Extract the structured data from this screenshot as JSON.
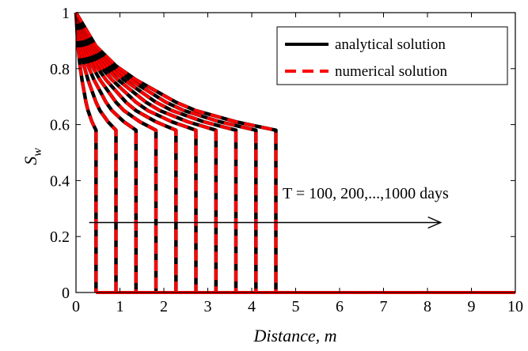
{
  "chart_data": {
    "type": "line",
    "title": "",
    "xlabel": "Distance, m",
    "ylabel_main": "S",
    "ylabel_sub": "w",
    "xlim": [
      0,
      10
    ],
    "ylim": [
      0,
      1
    ],
    "xticks": [
      "0",
      "1",
      "2",
      "3",
      "4",
      "5",
      "6",
      "7",
      "8",
      "9",
      "10"
    ],
    "yticks": [
      "0",
      "0.2",
      "0.4",
      "0.6",
      "0.8",
      "1"
    ],
    "grid": false,
    "legend": {
      "placement": "top-right",
      "entries": [
        {
          "label": "analytical solution",
          "color": "#000000",
          "style": "solid"
        },
        {
          "label": "numerical solution",
          "color": "#ff0000",
          "style": "dashed"
        }
      ]
    },
    "annotation": {
      "text": "T = 100, 200,...,1000 days",
      "arrow_from": [
        0.3,
        0.25
      ],
      "arrow_to": [
        8.3,
        0.25
      ]
    },
    "front_saturation": 0.58,
    "series": [
      {
        "T_days": 100,
        "front_x": 0.455,
        "points": [
          [
            0,
            1
          ],
          [
            0.0455,
            0.88
          ],
          [
            0.091,
            0.81
          ],
          [
            0.1365,
            0.76
          ],
          [
            0.182,
            0.72
          ],
          [
            0.2275,
            0.68
          ],
          [
            0.273,
            0.65
          ],
          [
            0.3185,
            0.63
          ],
          [
            0.364,
            0.61
          ],
          [
            0.4095,
            0.595
          ],
          [
            0.455,
            0.58
          ]
        ]
      },
      {
        "T_days": 200,
        "front_x": 0.91,
        "points": [
          [
            0,
            1
          ],
          [
            0.091,
            0.88
          ],
          [
            0.182,
            0.81
          ],
          [
            0.273,
            0.76
          ],
          [
            0.364,
            0.72
          ],
          [
            0.455,
            0.68
          ],
          [
            0.546,
            0.65
          ],
          [
            0.637,
            0.63
          ],
          [
            0.728,
            0.61
          ],
          [
            0.819,
            0.595
          ],
          [
            0.91,
            0.58
          ]
        ]
      },
      {
        "T_days": 300,
        "front_x": 1.365,
        "points": [
          [
            0,
            1
          ],
          [
            0.1365,
            0.88
          ],
          [
            0.273,
            0.81
          ],
          [
            0.4095,
            0.76
          ],
          [
            0.546,
            0.72
          ],
          [
            0.6825,
            0.68
          ],
          [
            0.819,
            0.65
          ],
          [
            0.9555,
            0.63
          ],
          [
            1.092,
            0.61
          ],
          [
            1.2285,
            0.595
          ],
          [
            1.365,
            0.58
          ]
        ]
      },
      {
        "T_days": 400,
        "front_x": 1.82,
        "points": [
          [
            0,
            1
          ],
          [
            0.182,
            0.88
          ],
          [
            0.364,
            0.81
          ],
          [
            0.546,
            0.76
          ],
          [
            0.728,
            0.72
          ],
          [
            0.91,
            0.68
          ],
          [
            1.092,
            0.65
          ],
          [
            1.274,
            0.63
          ],
          [
            1.456,
            0.61
          ],
          [
            1.638,
            0.595
          ],
          [
            1.82,
            0.58
          ]
        ]
      },
      {
        "T_days": 500,
        "front_x": 2.275,
        "points": [
          [
            0,
            1
          ],
          [
            0.2275,
            0.88
          ],
          [
            0.455,
            0.81
          ],
          [
            0.6825,
            0.76
          ],
          [
            0.91,
            0.72
          ],
          [
            1.1375,
            0.68
          ],
          [
            1.365,
            0.65
          ],
          [
            1.5925,
            0.63
          ],
          [
            1.82,
            0.61
          ],
          [
            2.0475,
            0.595
          ],
          [
            2.275,
            0.58
          ]
        ]
      },
      {
        "T_days": 600,
        "front_x": 2.73,
        "points": [
          [
            0,
            1
          ],
          [
            0.273,
            0.88
          ],
          [
            0.546,
            0.81
          ],
          [
            0.819,
            0.76
          ],
          [
            1.092,
            0.72
          ],
          [
            1.365,
            0.68
          ],
          [
            1.638,
            0.65
          ],
          [
            1.911,
            0.63
          ],
          [
            2.184,
            0.61
          ],
          [
            2.457,
            0.595
          ],
          [
            2.73,
            0.58
          ]
        ]
      },
      {
        "T_days": 700,
        "front_x": 3.185,
        "points": [
          [
            0,
            1
          ],
          [
            0.3185,
            0.88
          ],
          [
            0.637,
            0.81
          ],
          [
            0.9555,
            0.76
          ],
          [
            1.274,
            0.72
          ],
          [
            1.5925,
            0.68
          ],
          [
            1.911,
            0.65
          ],
          [
            2.2295,
            0.63
          ],
          [
            2.548,
            0.61
          ],
          [
            2.8665,
            0.595
          ],
          [
            3.185,
            0.58
          ]
        ]
      },
      {
        "T_days": 800,
        "front_x": 3.64,
        "points": [
          [
            0,
            1
          ],
          [
            0.364,
            0.88
          ],
          [
            0.728,
            0.81
          ],
          [
            1.092,
            0.76
          ],
          [
            1.456,
            0.72
          ],
          [
            1.82,
            0.68
          ],
          [
            2.184,
            0.65
          ],
          [
            2.548,
            0.63
          ],
          [
            2.912,
            0.61
          ],
          [
            3.276,
            0.595
          ],
          [
            3.64,
            0.58
          ]
        ]
      },
      {
        "T_days": 900,
        "front_x": 4.095,
        "points": [
          [
            0,
            1
          ],
          [
            0.4095,
            0.88
          ],
          [
            0.819,
            0.81
          ],
          [
            1.2285,
            0.76
          ],
          [
            1.638,
            0.72
          ],
          [
            2.0475,
            0.68
          ],
          [
            2.457,
            0.65
          ],
          [
            2.8665,
            0.63
          ],
          [
            3.276,
            0.61
          ],
          [
            3.6855,
            0.595
          ],
          [
            4.095,
            0.58
          ]
        ]
      },
      {
        "T_days": 1000,
        "front_x": 4.55,
        "points": [
          [
            0,
            1
          ],
          [
            0.455,
            0.88
          ],
          [
            0.91,
            0.81
          ],
          [
            1.365,
            0.76
          ],
          [
            1.82,
            0.72
          ],
          [
            2.275,
            0.68
          ],
          [
            2.73,
            0.65
          ],
          [
            3.185,
            0.63
          ],
          [
            3.64,
            0.61
          ],
          [
            4.095,
            0.595
          ],
          [
            4.55,
            0.58
          ]
        ]
      }
    ]
  }
}
